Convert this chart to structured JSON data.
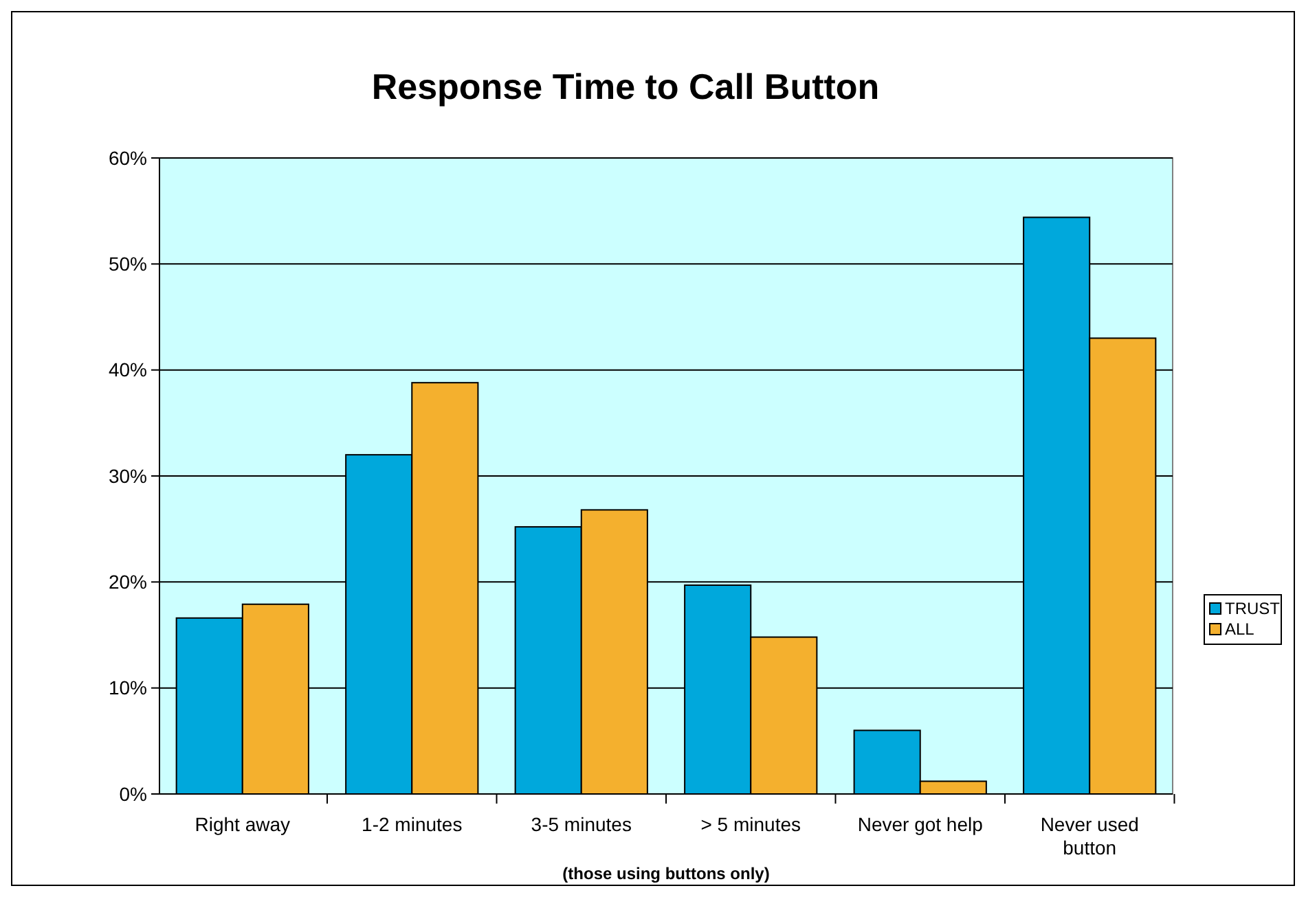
{
  "chart_data": {
    "type": "bar",
    "title": "Response Time to Call Button",
    "xlabel": "(those using buttons only)",
    "categories": [
      "Right away",
      "1-2 minutes",
      "3-5 minutes",
      "> 5 minutes",
      "Never got help",
      "Never used button"
    ],
    "series": [
      {
        "name": "TRUST",
        "color": "#00a8dc",
        "values": [
          16.6,
          32,
          25.2,
          19.7,
          6,
          54.4
        ]
      },
      {
        "name": "ALL",
        "color": "#f4b02e",
        "values": [
          17.9,
          38.8,
          26.8,
          14.8,
          1.2,
          43
        ]
      }
    ],
    "ylim": [
      0,
      60
    ],
    "yticks": [
      {
        "value": 0,
        "label": "0%"
      },
      {
        "value": 10,
        "label": "10%"
      },
      {
        "value": 20,
        "label": "20%"
      },
      {
        "value": 30,
        "label": "30%"
      },
      {
        "value": 40,
        "label": "40%"
      },
      {
        "value": 50,
        "label": "50%"
      },
      {
        "value": 60,
        "label": "60%"
      }
    ],
    "grid": "y",
    "legend": "right"
  }
}
